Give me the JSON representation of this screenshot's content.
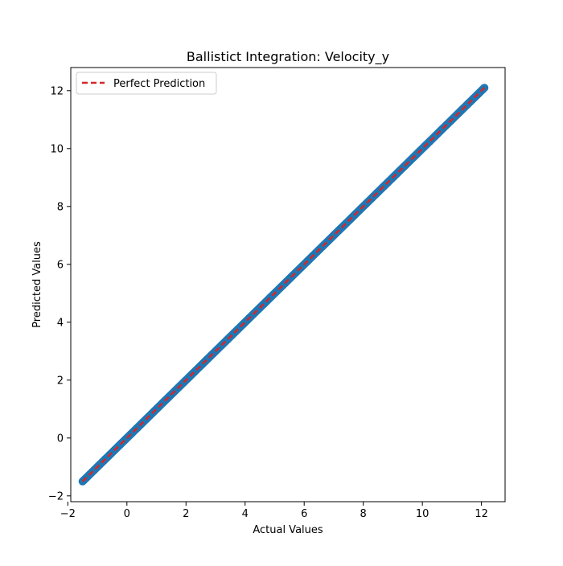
{
  "chart_data": {
    "type": "scatter",
    "title": "Ballistict Integration: Velocity_y",
    "xlabel": "Actual Values",
    "ylabel": "Predicted Values",
    "xlim": [
      -1.9,
      12.8
    ],
    "ylim": [
      -2.2,
      12.8
    ],
    "xticks": [
      -2,
      0,
      2,
      4,
      6,
      8,
      10,
      12
    ],
    "yticks": [
      -2,
      0,
      2,
      4,
      6,
      8,
      10,
      12
    ],
    "grid": false,
    "legend_position": "top-left",
    "series": [
      {
        "type": "scatter",
        "color": "#1f77b4",
        "x_range": [
          -1.5,
          12.1
        ],
        "points": 500,
        "relation": "y equals x"
      },
      {
        "name": "Perfect Prediction",
        "type": "line",
        "style": "dashed",
        "color": "#d62728",
        "x": [
          -1.5,
          12.1
        ],
        "y": [
          -1.5,
          12.1
        ]
      }
    ]
  }
}
